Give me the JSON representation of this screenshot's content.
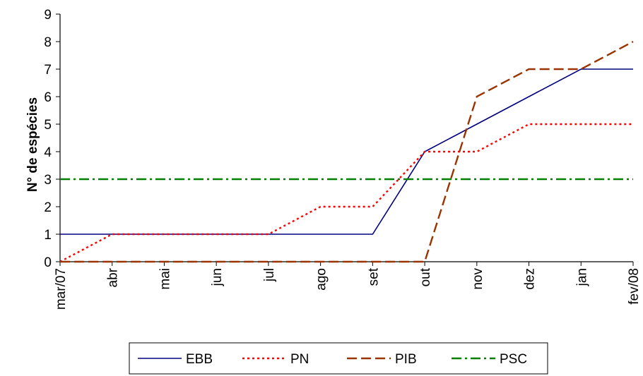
{
  "chart_data": {
    "type": "line",
    "title": "",
    "xlabel": "",
    "ylabel": "N° de espécies",
    "categories": [
      "mar/07",
      "abr",
      "mai",
      "jun",
      "jul",
      "ago",
      "set",
      "out",
      "nov",
      "dez",
      "jan",
      "fev/08"
    ],
    "yticks": [
      "0",
      "1",
      "2",
      "3",
      "4",
      "5",
      "6",
      "7",
      "8",
      "9"
    ],
    "ylim": [
      0,
      9
    ],
    "grid": false,
    "legend_position": "bottom",
    "series": [
      {
        "name": "EBB",
        "values": [
          1,
          1,
          1,
          1,
          1,
          1,
          1,
          4,
          5,
          6,
          7,
          7
        ],
        "color": "#000080",
        "dash": "solid"
      },
      {
        "name": "PN",
        "values": [
          0,
          1,
          1,
          1,
          1,
          2,
          2,
          4,
          4,
          5,
          5,
          5
        ],
        "color": "#ff0000",
        "dash": "dotted"
      },
      {
        "name": "PIB",
        "values": [
          0,
          0,
          0,
          0,
          0,
          0,
          0,
          0,
          6,
          7,
          7,
          8
        ],
        "color": "#993300",
        "dash": "dashed"
      },
      {
        "name": "PSC",
        "values": [
          3,
          3,
          3,
          3,
          3,
          3,
          3,
          3,
          3,
          3,
          3,
          3
        ],
        "color": "#008000",
        "dash": "dashdot"
      }
    ]
  }
}
